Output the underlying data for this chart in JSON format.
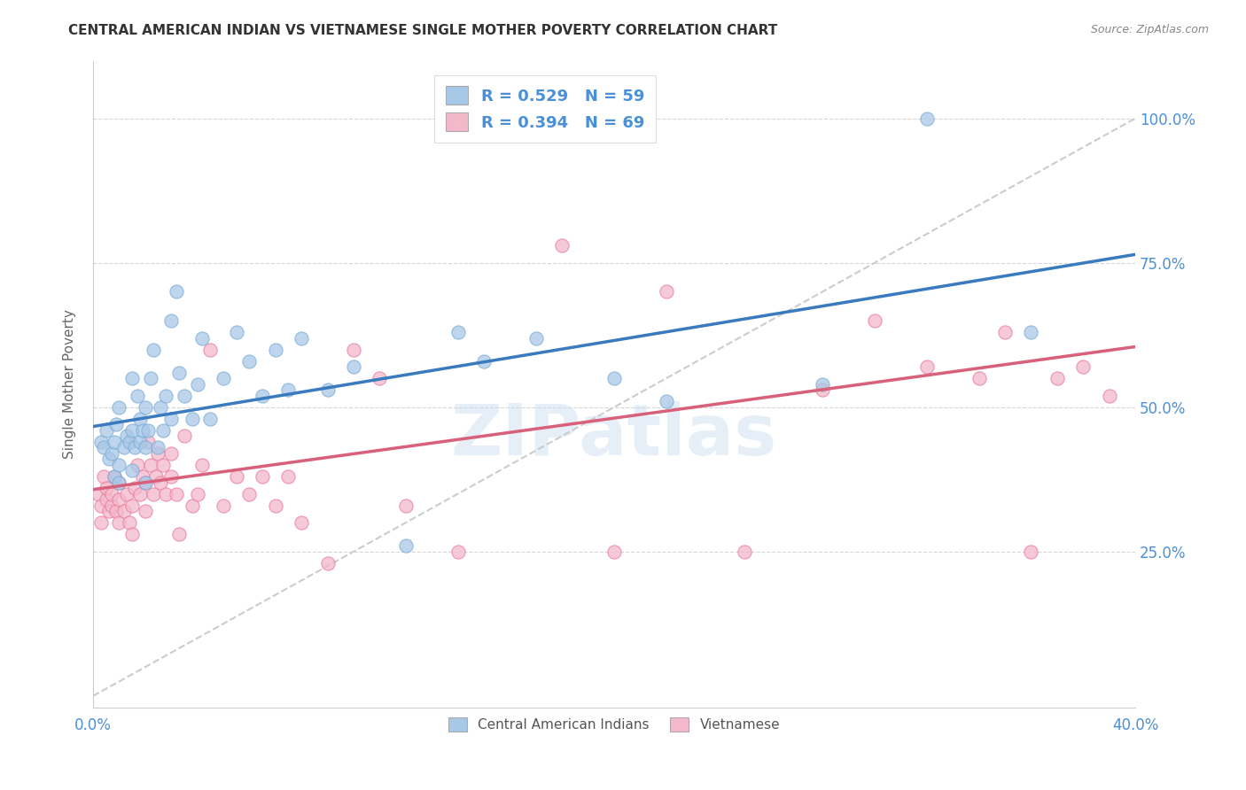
{
  "title": "CENTRAL AMERICAN INDIAN VS VIETNAMESE SINGLE MOTHER POVERTY CORRELATION CHART",
  "source": "Source: ZipAtlas.com",
  "xlabel": "",
  "ylabel": "Single Mother Poverty",
  "xlim": [
    0.0,
    0.4
  ],
  "ylim": [
    -0.02,
    1.1
  ],
  "yticks": [
    0.25,
    0.5,
    0.75,
    1.0
  ],
  "ytick_labels": [
    "25.0%",
    "50.0%",
    "75.0%",
    "100.0%"
  ],
  "xticks": [
    0.0,
    0.05,
    0.1,
    0.15,
    0.2,
    0.25,
    0.3,
    0.35,
    0.4
  ],
  "xtick_labels": [
    "0.0%",
    "",
    "",
    "",
    "",
    "",
    "",
    "",
    "40.0%"
  ],
  "color_blue": "#a8c8e8",
  "color_blue_edge": "#7aadd4",
  "color_pink": "#f4b8cb",
  "color_pink_edge": "#e87a9a",
  "color_trendline_blue": "#3a7abf",
  "color_trendline_pink": "#d9607a",
  "color_diagonal": "#cccccc",
  "watermark": "ZIPatlas",
  "legend_label1": "Central American Indians",
  "legend_label2": "Vietnamese",
  "blue_scatter_x": [
    0.003,
    0.004,
    0.005,
    0.006,
    0.007,
    0.008,
    0.008,
    0.009,
    0.01,
    0.01,
    0.01,
    0.012,
    0.013,
    0.014,
    0.015,
    0.015,
    0.015,
    0.016,
    0.017,
    0.018,
    0.018,
    0.019,
    0.02,
    0.02,
    0.02,
    0.021,
    0.022,
    0.023,
    0.025,
    0.026,
    0.027,
    0.028,
    0.03,
    0.03,
    0.032,
    0.033,
    0.035,
    0.038,
    0.04,
    0.042,
    0.045,
    0.05,
    0.055,
    0.06,
    0.065,
    0.07,
    0.075,
    0.08,
    0.09,
    0.1,
    0.12,
    0.14,
    0.15,
    0.17,
    0.2,
    0.22,
    0.28,
    0.32,
    0.36
  ],
  "blue_scatter_y": [
    0.44,
    0.43,
    0.46,
    0.41,
    0.42,
    0.38,
    0.44,
    0.47,
    0.37,
    0.4,
    0.5,
    0.43,
    0.45,
    0.44,
    0.39,
    0.46,
    0.55,
    0.43,
    0.52,
    0.44,
    0.48,
    0.46,
    0.37,
    0.43,
    0.5,
    0.46,
    0.55,
    0.6,
    0.43,
    0.5,
    0.46,
    0.52,
    0.48,
    0.65,
    0.7,
    0.56,
    0.52,
    0.48,
    0.54,
    0.62,
    0.48,
    0.55,
    0.63,
    0.58,
    0.52,
    0.6,
    0.53,
    0.62,
    0.53,
    0.57,
    0.26,
    0.63,
    0.58,
    0.62,
    0.55,
    0.51,
    0.54,
    1.0,
    0.63
  ],
  "pink_scatter_x": [
    0.002,
    0.003,
    0.003,
    0.004,
    0.005,
    0.005,
    0.006,
    0.007,
    0.007,
    0.008,
    0.009,
    0.01,
    0.01,
    0.01,
    0.012,
    0.013,
    0.014,
    0.015,
    0.015,
    0.016,
    0.017,
    0.018,
    0.019,
    0.02,
    0.02,
    0.021,
    0.022,
    0.023,
    0.024,
    0.025,
    0.026,
    0.027,
    0.028,
    0.03,
    0.03,
    0.032,
    0.033,
    0.035,
    0.038,
    0.04,
    0.042,
    0.045,
    0.05,
    0.055,
    0.06,
    0.065,
    0.07,
    0.075,
    0.08,
    0.09,
    0.1,
    0.11,
    0.12,
    0.14,
    0.15,
    0.17,
    0.18,
    0.2,
    0.22,
    0.25,
    0.28,
    0.3,
    0.32,
    0.34,
    0.35,
    0.36,
    0.37,
    0.38,
    0.39
  ],
  "pink_scatter_y": [
    0.35,
    0.3,
    0.33,
    0.38,
    0.34,
    0.36,
    0.32,
    0.33,
    0.35,
    0.38,
    0.32,
    0.3,
    0.34,
    0.37,
    0.32,
    0.35,
    0.3,
    0.28,
    0.33,
    0.36,
    0.4,
    0.35,
    0.38,
    0.32,
    0.37,
    0.44,
    0.4,
    0.35,
    0.38,
    0.42,
    0.37,
    0.4,
    0.35,
    0.38,
    0.42,
    0.35,
    0.28,
    0.45,
    0.33,
    0.35,
    0.4,
    0.6,
    0.33,
    0.38,
    0.35,
    0.38,
    0.33,
    0.38,
    0.3,
    0.23,
    0.6,
    0.55,
    0.33,
    0.25,
    1.0,
    1.0,
    0.78,
    0.25,
    0.7,
    0.25,
    0.53,
    0.65,
    0.57,
    0.55,
    0.63,
    0.25,
    0.55,
    0.57,
    0.52
  ]
}
